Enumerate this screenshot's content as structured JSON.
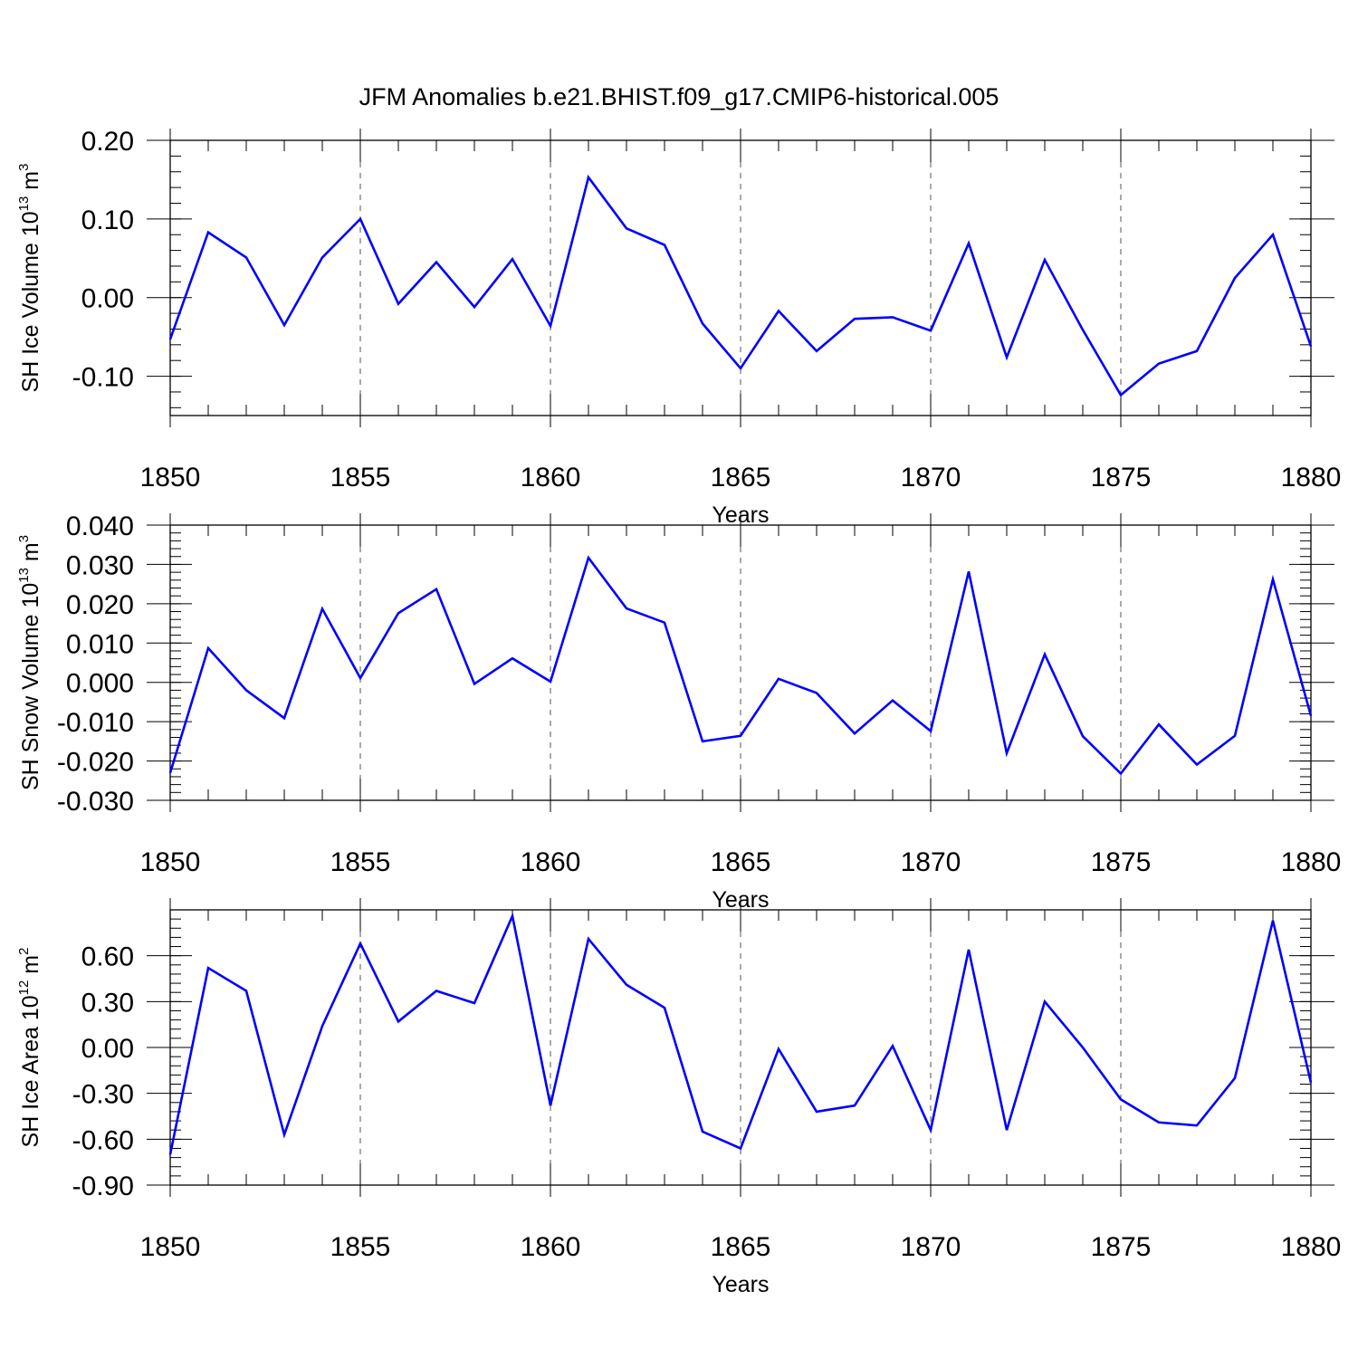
{
  "chart_data": [
    {
      "type": "line",
      "title": "JFM Anomalies b.e21.BHIST.f09_g17.CMIP6-historical.005",
      "xlabel": "Years",
      "ylabel_text": "SH Ice Volume 10",
      "ylabel_exp": "13",
      "ylabel_unit": "m",
      "ylabel_unit_exp": "3",
      "xlim": [
        1850,
        1880
      ],
      "ylim": [
        -0.15,
        0.2
      ],
      "xticks": [
        1850,
        1855,
        1860,
        1865,
        1870,
        1875,
        1880
      ],
      "xtick_labels": [
        "1850",
        "1855",
        "1860",
        "1865",
        "1870",
        "1875",
        "1880"
      ],
      "yticks": [
        -0.1,
        0.0,
        0.1,
        0.2
      ],
      "ytick_labels": [
        "-0.10",
        "0.00",
        "0.10",
        "0.20"
      ],
      "yminor_step": 0.02,
      "line_color": "#0000ff",
      "series": [
        {
          "name": "SH Ice Volume",
          "x": [
            1850,
            1851,
            1852,
            1853,
            1854,
            1855,
            1856,
            1857,
            1858,
            1859,
            1860,
            1861,
            1862,
            1863,
            1864,
            1865,
            1866,
            1867,
            1868,
            1869,
            1870,
            1871,
            1872,
            1873,
            1874,
            1875,
            1876,
            1877,
            1878,
            1879,
            1880
          ],
          "values": [
            -0.053,
            0.083,
            0.051,
            -0.035,
            0.051,
            0.1,
            -0.008,
            0.045,
            -0.012,
            0.049,
            -0.036,
            0.153,
            0.088,
            0.067,
            -0.033,
            -0.09,
            -0.017,
            -0.068,
            -0.027,
            -0.025,
            -0.042,
            0.069,
            -0.076,
            0.048,
            -0.041,
            -0.124,
            -0.084,
            -0.068,
            0.025,
            0.08,
            -0.062
          ]
        }
      ]
    },
    {
      "type": "line",
      "xlabel": "Years",
      "ylabel_text": "SH Snow Volume 10",
      "ylabel_exp": "13",
      "ylabel_unit": "m",
      "ylabel_unit_exp": "3",
      "xlim": [
        1850,
        1880
      ],
      "ylim": [
        -0.03,
        0.04
      ],
      "xticks": [
        1850,
        1855,
        1860,
        1865,
        1870,
        1875,
        1880
      ],
      "xtick_labels": [
        "1850",
        "1855",
        "1860",
        "1865",
        "1870",
        "1875",
        "1880"
      ],
      "yticks": [
        -0.03,
        -0.02,
        -0.01,
        0.0,
        0.01,
        0.02,
        0.03,
        0.04
      ],
      "ytick_labels": [
        "-0.030",
        "-0.020",
        "-0.010",
        "0.000",
        "0.010",
        "0.020",
        "0.030",
        "0.040"
      ],
      "yminor_step": 0.002,
      "line_color": "#0000ff",
      "series": [
        {
          "name": "SH Snow Volume",
          "x": [
            1850,
            1851,
            1852,
            1853,
            1854,
            1855,
            1856,
            1857,
            1858,
            1859,
            1860,
            1861,
            1862,
            1863,
            1864,
            1865,
            1866,
            1867,
            1868,
            1869,
            1870,
            1871,
            1872,
            1873,
            1874,
            1875,
            1876,
            1877,
            1878,
            1879,
            1880
          ],
          "values": [
            -0.023,
            0.0087,
            -0.002,
            -0.0091,
            0.0187,
            0.0011,
            0.0176,
            0.0237,
            -0.0004,
            0.0061,
            0.0002,
            0.0317,
            0.0188,
            0.0152,
            -0.015,
            -0.0136,
            0.0009,
            -0.0027,
            -0.013,
            -0.0046,
            -0.0124,
            0.0282,
            -0.018,
            0.0071,
            -0.0137,
            -0.0232,
            -0.0107,
            -0.0209,
            -0.0136,
            0.0262,
            -0.0085
          ]
        }
      ]
    },
    {
      "type": "line",
      "xlabel": "Years",
      "ylabel_text": "SH Ice Area 10",
      "ylabel_exp": "12",
      "ylabel_unit": "m",
      "ylabel_unit_exp": "2",
      "xlim": [
        1850,
        1880
      ],
      "ylim": [
        -0.9,
        0.9
      ],
      "xticks": [
        1850,
        1855,
        1860,
        1865,
        1870,
        1875,
        1880
      ],
      "xtick_labels": [
        "1850",
        "1855",
        "1860",
        "1865",
        "1870",
        "1875",
        "1880"
      ],
      "yticks": [
        -0.9,
        -0.6,
        -0.3,
        0.0,
        0.3,
        0.6
      ],
      "ytick_labels": [
        "-0.90",
        "-0.60",
        "-0.30",
        "0.00",
        "0.30",
        "0.60"
      ],
      "yminor_step": 0.06,
      "line_color": "#0000ff",
      "series": [
        {
          "name": "SH Ice Area",
          "x": [
            1850,
            1851,
            1852,
            1853,
            1854,
            1855,
            1856,
            1857,
            1858,
            1859,
            1860,
            1861,
            1862,
            1863,
            1864,
            1865,
            1866,
            1867,
            1868,
            1869,
            1870,
            1871,
            1872,
            1873,
            1874,
            1875,
            1876,
            1877,
            1878,
            1879,
            1880
          ],
          "values": [
            -0.7,
            0.52,
            0.37,
            -0.57,
            0.14,
            0.68,
            0.17,
            0.37,
            0.29,
            0.86,
            -0.38,
            0.71,
            0.41,
            0.26,
            -0.55,
            -0.66,
            -0.01,
            -0.42,
            -0.38,
            0.01,
            -0.54,
            0.64,
            -0.54,
            0.3,
            0.0,
            -0.34,
            -0.49,
            -0.51,
            -0.2,
            0.83,
            -0.23
          ]
        }
      ]
    }
  ]
}
